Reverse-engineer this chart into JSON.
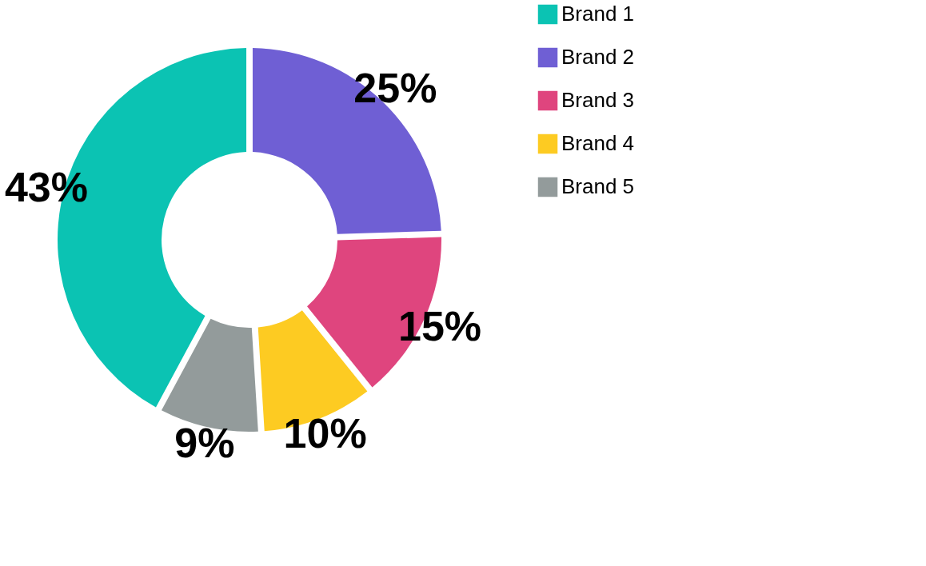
{
  "chart_data": {
    "type": "donut",
    "categories": [
      "Brand 1",
      "Brand 2",
      "Brand 3",
      "Brand 4",
      "Brand 5"
    ],
    "values": [
      43,
      25,
      15,
      10,
      9
    ],
    "value_labels": [
      "43%",
      "25%",
      "15%",
      "10%",
      "9%"
    ],
    "colors": [
      "#0bc3b3",
      "#6f5fd4",
      "#df457e",
      "#fdcb22",
      "#939b9b"
    ],
    "legend": "top right"
  }
}
